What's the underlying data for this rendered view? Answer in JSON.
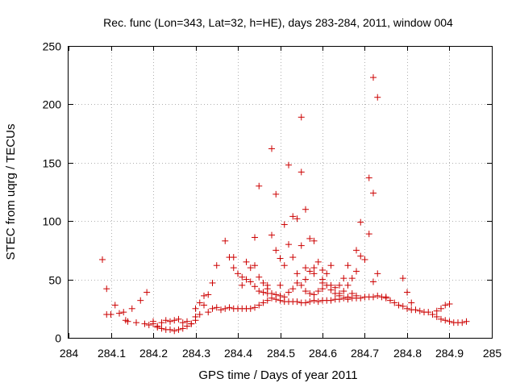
{
  "chart_data": {
    "type": "scatter",
    "title": "Rec. func (Lon=343, Lat=32, h=HE), days 283-284, 2011, window 004",
    "xlabel": "GPS time / Days of year 2011",
    "ylabel": "STEC from uqrg / TECUs",
    "xlim": [
      284,
      285
    ],
    "ylim": [
      0,
      250
    ],
    "x_ticks": [
      "284",
      "284.1",
      "284.2",
      "284.3",
      "284.4",
      "284.5",
      "284.6",
      "284.7",
      "284.8",
      "284.9",
      "285"
    ],
    "y_ticks": [
      "0",
      "50",
      "100",
      "150",
      "200",
      "250"
    ],
    "grid": true,
    "marker": "+",
    "marker_color": "#cc0000",
    "series": [
      {
        "name": "STEC",
        "points": [
          [
            284.08,
            67
          ],
          [
            284.09,
            42
          ],
          [
            284.09,
            20
          ],
          [
            284.1,
            20
          ],
          [
            284.11,
            28
          ],
          [
            284.12,
            21
          ],
          [
            284.13,
            22
          ],
          [
            284.135,
            15
          ],
          [
            284.14,
            14
          ],
          [
            284.15,
            25
          ],
          [
            284.16,
            13
          ],
          [
            284.17,
            32
          ],
          [
            284.18,
            12
          ],
          [
            284.185,
            39
          ],
          [
            284.19,
            11
          ],
          [
            284.2,
            12
          ],
          [
            284.21,
            10
          ],
          [
            284.22,
            13
          ],
          [
            284.23,
            15
          ],
          [
            284.24,
            14
          ],
          [
            284.25,
            15
          ],
          [
            284.2,
            14
          ],
          [
            284.26,
            16
          ],
          [
            284.27,
            13
          ],
          [
            284.28,
            14
          ],
          [
            284.29,
            12
          ],
          [
            284.3,
            15
          ],
          [
            284.21,
            9
          ],
          [
            284.22,
            8
          ],
          [
            284.23,
            7
          ],
          [
            284.24,
            7
          ],
          [
            284.25,
            6
          ],
          [
            284.26,
            7
          ],
          [
            284.27,
            8
          ],
          [
            284.28,
            10
          ],
          [
            284.29,
            12
          ],
          [
            284.3,
            18
          ],
          [
            284.31,
            20
          ],
          [
            284.32,
            28
          ],
          [
            284.33,
            22
          ],
          [
            284.34,
            25
          ],
          [
            284.35,
            26
          ],
          [
            284.36,
            24
          ],
          [
            284.37,
            25
          ],
          [
            284.38,
            26
          ],
          [
            284.39,
            25
          ],
          [
            284.4,
            25
          ],
          [
            284.41,
            25
          ],
          [
            284.42,
            25
          ],
          [
            284.43,
            25
          ],
          [
            284.44,
            26
          ],
          [
            284.45,
            28
          ],
          [
            284.46,
            30
          ],
          [
            284.47,
            32
          ],
          [
            284.48,
            34
          ],
          [
            284.49,
            33
          ],
          [
            284.5,
            32
          ],
          [
            284.51,
            31
          ],
          [
            284.52,
            31
          ],
          [
            284.53,
            31
          ],
          [
            284.54,
            31
          ],
          [
            284.55,
            30
          ],
          [
            284.56,
            30
          ],
          [
            284.57,
            31
          ],
          [
            284.58,
            32
          ],
          [
            284.59,
            31
          ],
          [
            284.6,
            32
          ],
          [
            284.61,
            32
          ],
          [
            284.62,
            32
          ],
          [
            284.63,
            33
          ],
          [
            284.64,
            33
          ],
          [
            284.65,
            34
          ],
          [
            284.66,
            33
          ],
          [
            284.67,
            34
          ],
          [
            284.68,
            34
          ],
          [
            284.69,
            34
          ],
          [
            284.7,
            35
          ],
          [
            284.71,
            35
          ],
          [
            284.72,
            35
          ],
          [
            284.73,
            36
          ],
          [
            284.74,
            35
          ],
          [
            284.75,
            34
          ],
          [
            284.76,
            32
          ],
          [
            284.77,
            30
          ],
          [
            284.78,
            28
          ],
          [
            284.79,
            27
          ],
          [
            284.8,
            25
          ],
          [
            284.81,
            24
          ],
          [
            284.82,
            24
          ],
          [
            284.83,
            23
          ],
          [
            284.84,
            22
          ],
          [
            284.85,
            22
          ],
          [
            284.86,
            20
          ],
          [
            284.87,
            18
          ],
          [
            284.88,
            16
          ],
          [
            284.89,
            15
          ],
          [
            284.9,
            14
          ],
          [
            284.91,
            13
          ],
          [
            284.92,
            13
          ],
          [
            284.93,
            13
          ],
          [
            284.94,
            14
          ],
          [
            284.87,
            23
          ],
          [
            284.88,
            25
          ],
          [
            284.89,
            28
          ],
          [
            284.9,
            29
          ],
          [
            284.3,
            25
          ],
          [
            284.31,
            30
          ],
          [
            284.32,
            36
          ],
          [
            284.33,
            37
          ],
          [
            284.34,
            47
          ],
          [
            284.35,
            62
          ],
          [
            284.37,
            83
          ],
          [
            284.38,
            69
          ],
          [
            284.39,
            69
          ],
          [
            284.39,
            60
          ],
          [
            284.4,
            55
          ],
          [
            284.41,
            52
          ],
          [
            284.41,
            45
          ],
          [
            284.42,
            65
          ],
          [
            284.43,
            60
          ],
          [
            284.44,
            62
          ],
          [
            284.44,
            86
          ],
          [
            284.45,
            130
          ],
          [
            284.45,
            52
          ],
          [
            284.46,
            47
          ],
          [
            284.47,
            42
          ],
          [
            284.48,
            162
          ],
          [
            284.48,
            88
          ],
          [
            284.49,
            123
          ],
          [
            284.49,
            75
          ],
          [
            284.5,
            68
          ],
          [
            284.5,
            45
          ],
          [
            284.51,
            97
          ],
          [
            284.51,
            62
          ],
          [
            284.52,
            80
          ],
          [
            284.52,
            148
          ],
          [
            284.53,
            104
          ],
          [
            284.53,
            69
          ],
          [
            284.54,
            102
          ],
          [
            284.54,
            55
          ],
          [
            284.55,
            189
          ],
          [
            284.55,
            142
          ],
          [
            284.55,
            79
          ],
          [
            284.56,
            60
          ],
          [
            284.56,
            110
          ],
          [
            284.57,
            85
          ],
          [
            284.57,
            57
          ],
          [
            284.58,
            83
          ],
          [
            284.58,
            55
          ],
          [
            284.59,
            65
          ],
          [
            284.6,
            58
          ],
          [
            284.6,
            50
          ],
          [
            284.61,
            55
          ],
          [
            284.62,
            62
          ],
          [
            284.62,
            45
          ],
          [
            284.63,
            43
          ],
          [
            284.64,
            45
          ],
          [
            284.65,
            51
          ],
          [
            284.66,
            62
          ],
          [
            284.67,
            51
          ],
          [
            284.68,
            75
          ],
          [
            284.68,
            57
          ],
          [
            284.69,
            99
          ],
          [
            284.69,
            70
          ],
          [
            284.7,
            67
          ],
          [
            284.71,
            137
          ],
          [
            284.71,
            89
          ],
          [
            284.72,
            124
          ],
          [
            284.72,
            48
          ],
          [
            284.72,
            223
          ],
          [
            284.73,
            206
          ],
          [
            284.73,
            55
          ],
          [
            284.75,
            35
          ],
          [
            284.79,
            51
          ],
          [
            284.8,
            39
          ],
          [
            284.81,
            30
          ],
          [
            284.45,
            40
          ],
          [
            284.46,
            39
          ],
          [
            284.47,
            38
          ],
          [
            284.48,
            38
          ],
          [
            284.49,
            37
          ],
          [
            284.5,
            36
          ],
          [
            284.51,
            35
          ],
          [
            284.52,
            39
          ],
          [
            284.53,
            42
          ],
          [
            284.54,
            47
          ],
          [
            284.55,
            45
          ],
          [
            284.56,
            40
          ],
          [
            284.57,
            38
          ],
          [
            284.58,
            37
          ],
          [
            284.59,
            40
          ],
          [
            284.6,
            42
          ],
          [
            284.61,
            45
          ],
          [
            284.62,
            41
          ],
          [
            284.63,
            38
          ],
          [
            284.64,
            36
          ],
          [
            284.65,
            40
          ],
          [
            284.66,
            45
          ],
          [
            284.67,
            38
          ],
          [
            284.68,
            36
          ],
          [
            284.42,
            50
          ],
          [
            284.43,
            48
          ],
          [
            284.44,
            44
          ],
          [
            284.47,
            45
          ],
          [
            284.56,
            50
          ],
          [
            284.58,
            60
          ],
          [
            284.6,
            47
          ],
          [
            284.64,
            38
          ],
          [
            284.66,
            35
          ]
        ]
      }
    ]
  }
}
